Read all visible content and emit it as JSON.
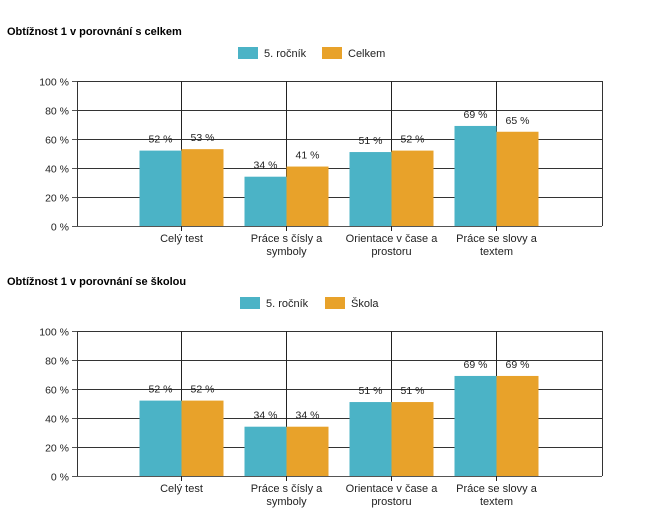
{
  "chart_data": [
    {
      "type": "bar",
      "title": "Obtížnost 1 v porovnání s celkem",
      "categories": [
        [
          "Celý test"
        ],
        [
          "Práce s čísly a",
          "symboly"
        ],
        [
          "Orientace v čase a",
          "prostoru"
        ],
        [
          "Práce se slovy a",
          "textem"
        ]
      ],
      "series": [
        {
          "name": "5. ročník",
          "values": [
            52,
            34,
            51,
            69
          ],
          "labels": [
            "52 %",
            "34 %",
            "51 %",
            "69 %"
          ],
          "color": "#4bb3c6"
        },
        {
          "name": "Celkem",
          "values": [
            53,
            41,
            52,
            65
          ],
          "labels": [
            "53 %",
            "41 %",
            "52 %",
            "65 %"
          ],
          "color": "#e8a22a"
        }
      ],
      "ylim": [
        0,
        100
      ],
      "yticks": [
        0,
        20,
        40,
        60,
        80,
        100
      ],
      "ytick_labels": [
        "0 %",
        "20 %",
        "40 %",
        "60 %",
        "80 %",
        "100 %"
      ],
      "grid": true,
      "legend": "top-center"
    },
    {
      "type": "bar",
      "title": "Obtížnost 1 v porovnání se školou",
      "categories": [
        [
          "Celý test"
        ],
        [
          "Práce s čísly a",
          "symboly"
        ],
        [
          "Orientace v čase a",
          "prostoru"
        ],
        [
          "Práce se slovy a",
          "textem"
        ]
      ],
      "series": [
        {
          "name": "5. ročník",
          "values": [
            52,
            34,
            51,
            69
          ],
          "labels": [
            "52 %",
            "34 %",
            "51 %",
            "69 %"
          ],
          "color": "#4bb3c6"
        },
        {
          "name": "Škola",
          "values": [
            52,
            34,
            51,
            69
          ],
          "labels": [
            "52 %",
            "34 %",
            "51 %",
            "69 %"
          ],
          "color": "#e8a22a"
        }
      ],
      "ylim": [
        0,
        100
      ],
      "yticks": [
        0,
        20,
        40,
        60,
        80,
        100
      ],
      "ytick_labels": [
        "0 %",
        "20 %",
        "40 %",
        "60 %",
        "80 %",
        "100 %"
      ],
      "grid": true,
      "legend": "top-center"
    }
  ]
}
